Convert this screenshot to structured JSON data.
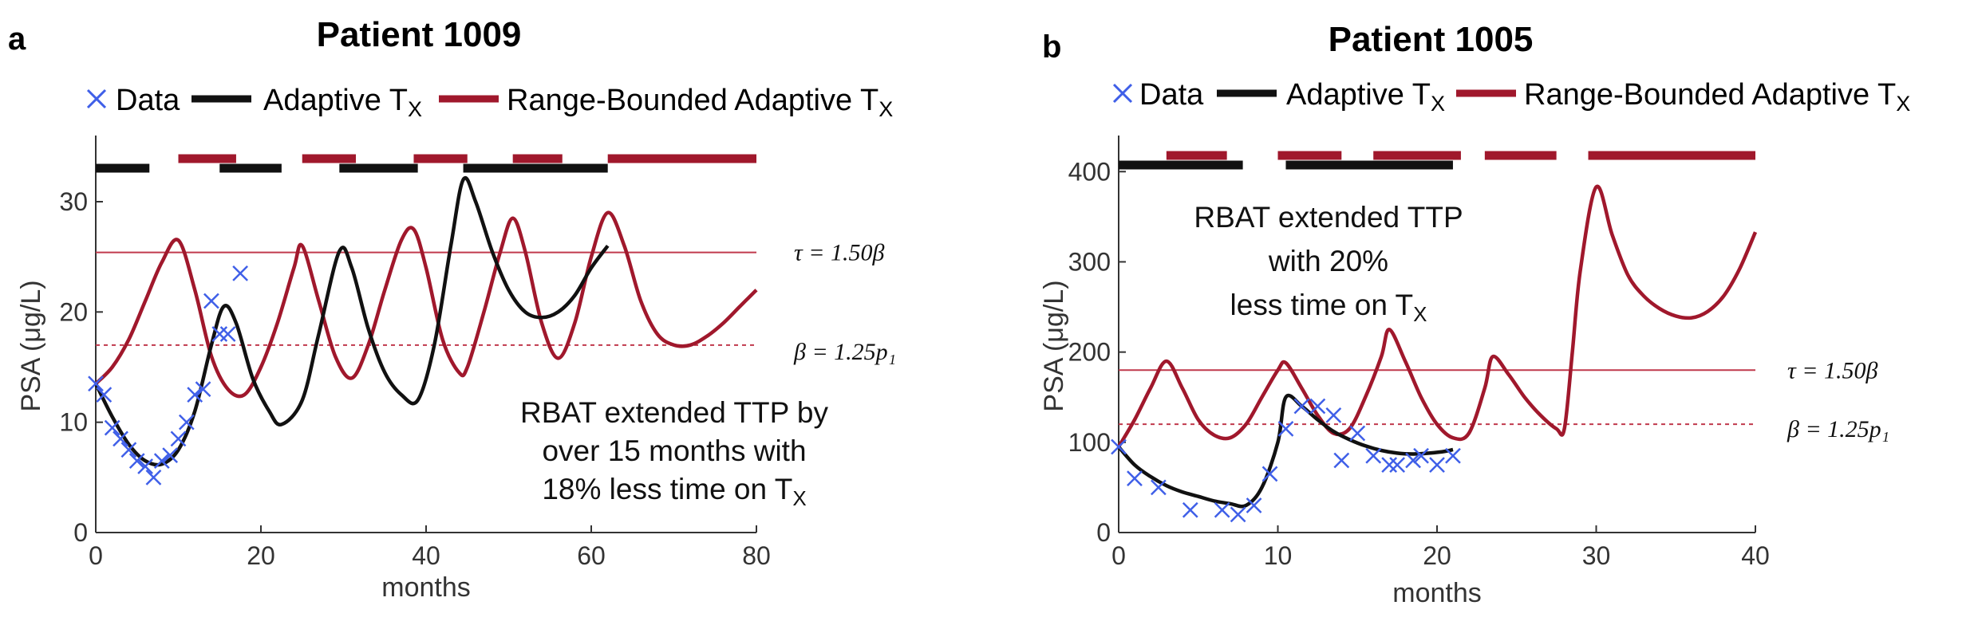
{
  "colors": {
    "data": "#3f5fe8",
    "adaptive": "#111111",
    "rbat": "#a0182c",
    "threshold": "#c0394c"
  },
  "legend": {
    "data": "Data",
    "adaptive": "Adaptive T",
    "adaptive_sub": "X",
    "rbat": "Range-Bounded Adaptive T",
    "rbat_sub": "X"
  },
  "chart_data": [
    {
      "panel": "a",
      "title": "Patient 1009",
      "type": "line",
      "xlabel": "months",
      "ylabel": "PSA (μg/L)",
      "xlim": [
        0,
        80
      ],
      "ylim": [
        0,
        36
      ],
      "xticks": [
        0,
        20,
        40,
        60,
        80
      ],
      "yticks": [
        0,
        10,
        20,
        30
      ],
      "thresholds": [
        {
          "name": "tau",
          "value": 25.4,
          "label": "τ = 1.50β",
          "style": "solid"
        },
        {
          "name": "beta",
          "value": 17.0,
          "label": "β = 1.25p₁",
          "style": "dashed"
        }
      ],
      "annotation_lines": [
        "RBAT extended TTP by",
        "over 15 months with",
        "18% less time on T"
      ],
      "annotation_sub": "X",
      "treatment_bars": {
        "adaptive": [
          [
            0,
            6.5
          ],
          [
            15,
            22.5
          ],
          [
            29.5,
            39
          ],
          [
            44.5,
            62
          ]
        ],
        "rbat": [
          [
            10,
            17
          ],
          [
            25,
            31.5
          ],
          [
            38.5,
            45
          ],
          [
            50.5,
            56.5
          ],
          [
            62,
            80
          ]
        ]
      },
      "series": [
        {
          "name": "Data",
          "kind": "scatter",
          "x": [
            0,
            1,
            2,
            3,
            4,
            5,
            6,
            7,
            8,
            9,
            10,
            11,
            12,
            13,
            14,
            15,
            16,
            17.5
          ],
          "y": [
            13.5,
            12.5,
            9.5,
            8.5,
            7.5,
            6.5,
            6,
            5,
            6.5,
            7,
            8.5,
            10,
            12.5,
            13,
            21,
            18,
            18,
            23.5
          ]
        },
        {
          "name": "Adaptive T_X",
          "kind": "line",
          "x": [
            0,
            2,
            4,
            6,
            8,
            10,
            12,
            14,
            15.5,
            17,
            19,
            21,
            22.5,
            25,
            27,
            29.5,
            31,
            33,
            35,
            37,
            39,
            41,
            43,
            44.5,
            46,
            48,
            50,
            52,
            54,
            56,
            58,
            60,
            62
          ],
          "y": [
            13.5,
            10.5,
            8,
            6.5,
            6.2,
            7.5,
            11,
            17,
            20.5,
            19,
            14,
            11,
            9.8,
            12,
            18,
            25.5,
            24,
            18.5,
            14.5,
            12.5,
            12,
            17,
            26,
            32,
            30,
            25.5,
            22,
            20,
            19.5,
            20,
            21.5,
            24,
            26
          ]
        },
        {
          "name": "Range-Bounded Adaptive T_X",
          "kind": "line",
          "x": [
            0,
            2,
            4,
            6,
            8,
            10,
            12,
            14,
            16,
            18,
            20,
            22,
            24,
            25,
            27,
            29,
            31,
            33,
            35,
            37,
            38.5,
            40,
            42,
            44,
            45,
            47,
            49,
            50.5,
            52,
            54,
            56,
            58,
            60,
            62,
            64,
            66,
            68,
            70,
            72,
            74,
            76,
            78,
            80
          ],
          "y": [
            13.5,
            15,
            17.5,
            21,
            24.5,
            26.5,
            22,
            16,
            13,
            12.5,
            15,
            19,
            24,
            26,
            21,
            16,
            14,
            17,
            22,
            26.5,
            27.5,
            24,
            17.5,
            14.5,
            15,
            20,
            25.5,
            28.5,
            25.5,
            19,
            15.8,
            19,
            25,
            29,
            26,
            21,
            18,
            17,
            17,
            17.8,
            19,
            20.5,
            22
          ]
        }
      ]
    },
    {
      "panel": "b",
      "title": "Patient 1005",
      "type": "line",
      "xlabel": "months",
      "ylabel": "PSA (μg/L)",
      "xlim": [
        0,
        40
      ],
      "ylim": [
        0,
        440
      ],
      "xticks": [
        0,
        10,
        20,
        30,
        40
      ],
      "yticks": [
        0,
        100,
        200,
        300,
        400
      ],
      "thresholds": [
        {
          "name": "tau",
          "value": 180,
          "label": "τ = 1.50β",
          "style": "solid"
        },
        {
          "name": "beta",
          "value": 120,
          "label": "β = 1.25p₁",
          "style": "dashed"
        }
      ],
      "annotation_lines": [
        "RBAT extended TTP",
        "with 20%",
        "less time on T"
      ],
      "annotation_sub": "X",
      "treatment_bars": {
        "adaptive": [
          [
            0,
            7.8
          ],
          [
            10.5,
            21
          ]
        ],
        "rbat": [
          [
            3,
            6.8
          ],
          [
            10,
            14
          ],
          [
            16,
            21.5
          ],
          [
            23,
            27.5
          ],
          [
            29.5,
            40
          ]
        ]
      },
      "series": [
        {
          "name": "Data",
          "kind": "scatter",
          "x": [
            0,
            1,
            2.5,
            4.5,
            6.5,
            7.5,
            8.5,
            9.5,
            10.5,
            11.5,
            12.5,
            13.5,
            14,
            15,
            16,
            17,
            17.5,
            18.5,
            19,
            20,
            21
          ],
          "y": [
            95,
            60,
            50,
            25,
            25,
            20,
            30,
            65,
            115,
            140,
            140,
            130,
            80,
            110,
            85,
            75,
            75,
            80,
            85,
            75,
            85
          ]
        },
        {
          "name": "Adaptive T_X",
          "kind": "line",
          "x": [
            0,
            1,
            2,
            3,
            4,
            5,
            6,
            7,
            8,
            9,
            10,
            10.5,
            11.5,
            12.5,
            13.5,
            14.5,
            15.5,
            16.5,
            17.5,
            18.5,
            19.5,
            20.5,
            21
          ],
          "y": [
            95,
            75,
            62,
            52,
            45,
            40,
            35,
            32,
            30,
            50,
            100,
            150,
            140,
            125,
            112,
            103,
            96,
            91,
            88,
            87,
            88,
            90,
            92
          ]
        },
        {
          "name": "Range-Bounded Adaptive T_X",
          "kind": "line",
          "x": [
            0,
            1,
            2,
            3,
            4,
            5,
            6,
            7,
            8,
            9,
            10,
            10.5,
            11.5,
            12.5,
            13.5,
            14.5,
            15.5,
            16.5,
            17,
            18,
            19,
            20,
            21,
            22,
            23,
            23.5,
            24.5,
            25.5,
            26.5,
            27.5,
            28,
            28.5,
            29,
            30,
            31,
            32,
            33,
            34,
            35,
            36,
            37,
            38,
            39,
            40
          ],
          "y": [
            95,
            125,
            160,
            190,
            160,
            125,
            108,
            105,
            120,
            150,
            180,
            188,
            160,
            130,
            110,
            115,
            150,
            195,
            225,
            190,
            150,
            120,
            105,
            110,
            160,
            195,
            175,
            150,
            130,
            115,
            115,
            200,
            290,
            383,
            330,
            285,
            262,
            248,
            240,
            238,
            245,
            262,
            292,
            333
          ]
        }
      ]
    }
  ]
}
